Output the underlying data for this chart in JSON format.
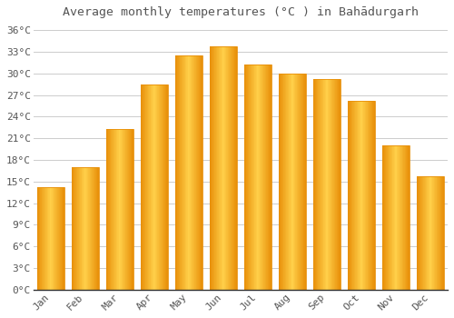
{
  "title": "Average monthly temperatures (°C ) in Bahādurgarh",
  "months": [
    "Jan",
    "Feb",
    "Mar",
    "Apr",
    "May",
    "Jun",
    "Jul",
    "Aug",
    "Sep",
    "Oct",
    "Nov",
    "Dec"
  ],
  "values": [
    14.2,
    17.0,
    22.3,
    28.5,
    32.5,
    33.8,
    31.2,
    30.0,
    29.2,
    26.2,
    20.0,
    15.8
  ],
  "bar_color_center": "#FFD04A",
  "bar_color_edge": "#E8900A",
  "background_color": "#FFFFFF",
  "grid_color": "#CCCCCC",
  "text_color": "#555555",
  "ylim": [
    0,
    37
  ],
  "yticks": [
    0,
    3,
    6,
    9,
    12,
    15,
    18,
    21,
    24,
    27,
    30,
    33,
    36
  ],
  "ytick_labels": [
    "0°C",
    "3°C",
    "6°C",
    "9°C",
    "12°C",
    "15°C",
    "18°C",
    "21°C",
    "24°C",
    "27°C",
    "30°C",
    "33°C",
    "36°C"
  ],
  "title_fontsize": 9.5,
  "tick_fontsize": 8,
  "figsize": [
    5.0,
    3.5
  ],
  "dpi": 100,
  "bar_width": 0.78
}
